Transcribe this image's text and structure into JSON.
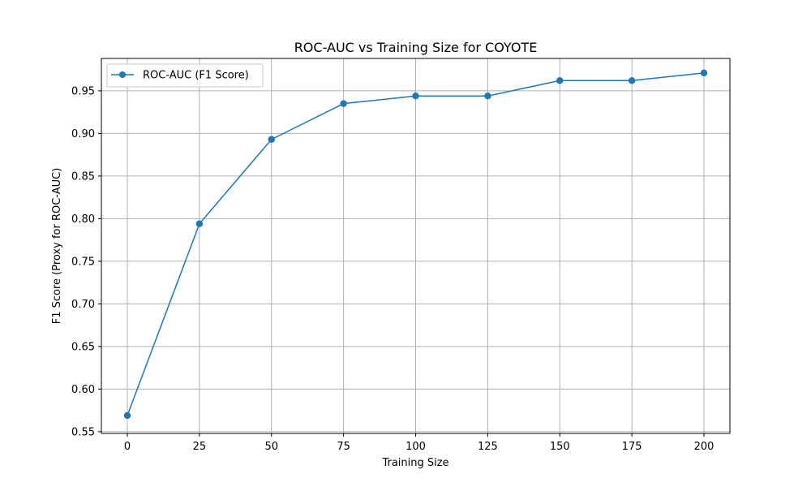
{
  "chart_data": {
    "type": "line",
    "title": "ROC-AUC vs Training Size for COYOTE",
    "xlabel": "Training Size",
    "ylabel": "F1 Score (Proxy for ROC-AUC)",
    "x": [
      0,
      25,
      50,
      75,
      100,
      125,
      150,
      175,
      200
    ],
    "xlim": [
      -9,
      209
    ],
    "ylim": [
      0.548,
      0.988
    ],
    "xticks": [
      0,
      25,
      50,
      75,
      100,
      125,
      150,
      175,
      200
    ],
    "yticks": [
      0.55,
      0.6,
      0.65,
      0.7,
      0.75,
      0.8,
      0.85,
      0.9,
      0.95
    ],
    "xtick_labels": [
      "0",
      "25",
      "50",
      "75",
      "100",
      "125",
      "150",
      "175",
      "200"
    ],
    "ytick_labels": [
      "0.55",
      "0.60",
      "0.65",
      "0.70",
      "0.75",
      "0.80",
      "0.85",
      "0.90",
      "0.95"
    ],
    "grid": true,
    "legend_position": "top-left",
    "series": [
      {
        "name": "ROC-AUC (F1 Score)",
        "color": "#1f77b4",
        "marker": "circle",
        "values": [
          0.569,
          0.794,
          0.893,
          0.935,
          0.944,
          0.944,
          0.962,
          0.962,
          0.971
        ]
      }
    ]
  }
}
